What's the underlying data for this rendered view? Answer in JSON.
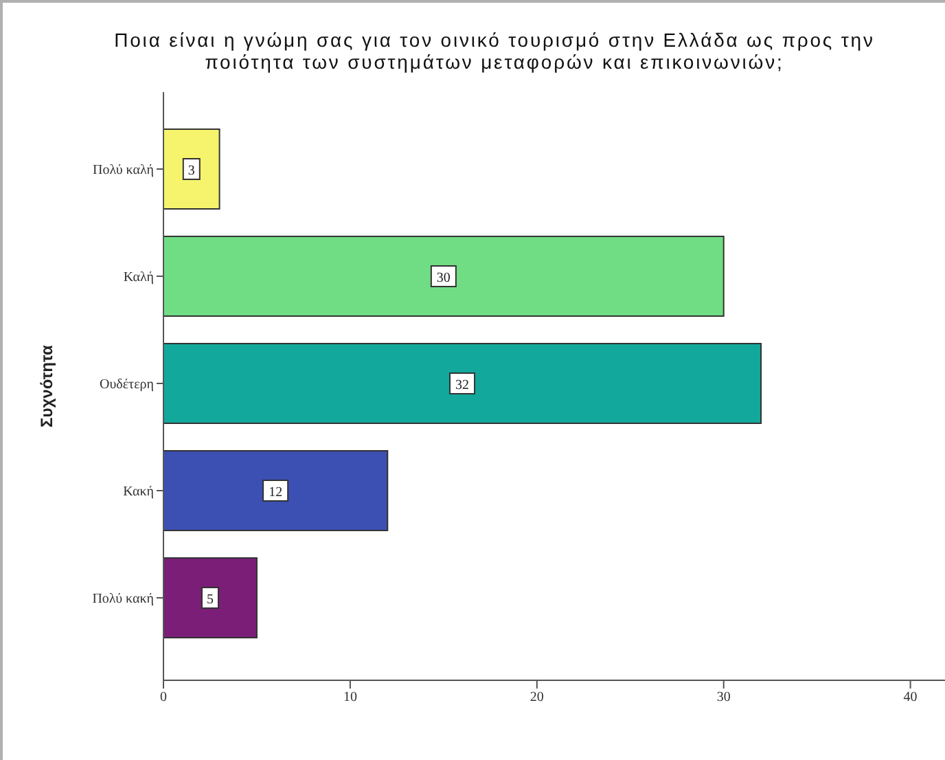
{
  "chart_data": {
    "type": "bar",
    "orientation": "horizontal",
    "title": "Ποια είναι η γνώμη σας για τον οινικό τουρισμό στην Ελλάδα ως προς την ποιότητα των συστημάτων μεταφορών και επικοινωνιών;",
    "ylabel": "Συχνότητα",
    "categories": [
      "Πολύ καλή",
      "Καλή",
      "Ουδέτερη",
      "Κακή",
      "Πολύ κακή"
    ],
    "values": [
      3,
      30,
      32,
      12,
      5
    ],
    "colors": [
      "#f6f46c",
      "#70dd84",
      "#12a89c",
      "#3c4fb2",
      "#7a1e77"
    ],
    "xlim": [
      0,
      42
    ],
    "xticks": [
      0,
      10,
      20,
      30,
      40
    ],
    "data_labels": true
  }
}
